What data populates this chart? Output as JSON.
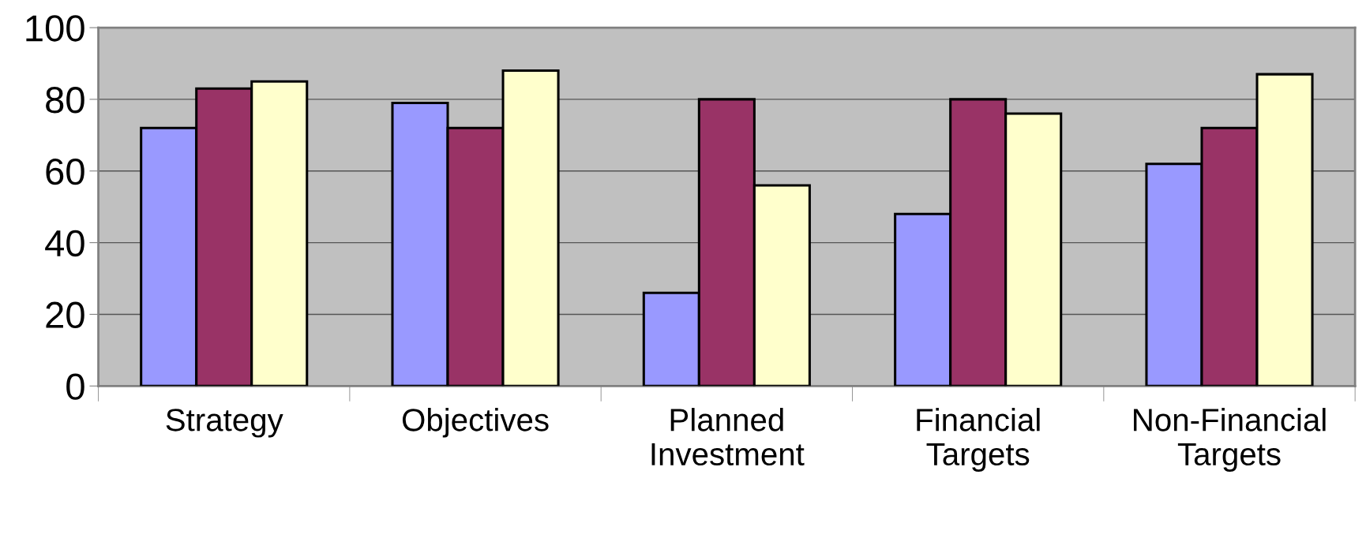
{
  "chart_data": {
    "type": "bar",
    "categories": [
      "Strategy",
      "Objectives",
      "Planned\nInvestment",
      "Financial\nTargets",
      "Non-Financial\nTargets"
    ],
    "series": [
      {
        "color": "#9999ff",
        "values": [
          72,
          79,
          26,
          48,
          62
        ]
      },
      {
        "color": "#993366",
        "values": [
          83,
          72,
          80,
          80,
          72
        ]
      },
      {
        "color": "#ffffcc",
        "values": [
          85,
          88,
          56,
          76,
          87
        ]
      }
    ],
    "ylim": [
      0,
      100
    ],
    "yticks": [
      0,
      20,
      40,
      60,
      80,
      100
    ],
    "grid": "y",
    "legend": false
  }
}
